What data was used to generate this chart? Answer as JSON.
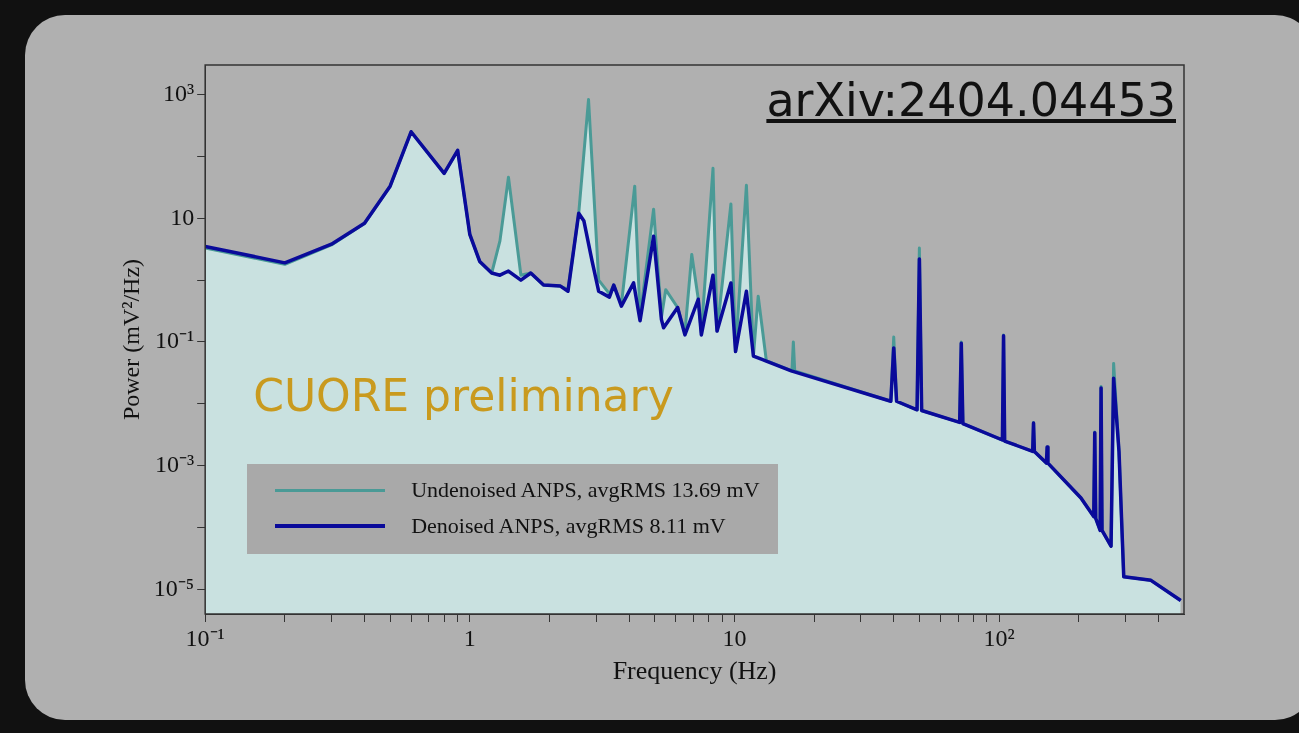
{
  "chart_data": {
    "type": "line",
    "xlabel": "Frequency (Hz)",
    "ylabel": "Power (mV²/Hz)",
    "annotations": [
      "CUORE preliminary",
      "arXiv:2404.04453"
    ],
    "log": "xy",
    "legend": "bottom left",
    "marker": "none",
    "line_style": "solid",
    "xlim": [
      0.1,
      500
    ],
    "ylim": [
      4e-06,
      3000
    ],
    "xticks": [
      {
        "value": 0.1,
        "label": "10⁻¹"
      },
      {
        "value": 0.2,
        "label": null
      },
      {
        "value": 0.3,
        "label": null
      },
      {
        "value": 0.4,
        "label": null
      },
      {
        "value": 0.5,
        "label": null
      },
      {
        "value": 0.6,
        "label": null
      },
      {
        "value": 0.7,
        "label": null
      },
      {
        "value": 0.8,
        "label": null
      },
      {
        "value": 0.9,
        "label": null
      },
      1,
      {
        "value": 2,
        "label": null
      },
      {
        "value": 3,
        "label": null
      },
      {
        "value": 4,
        "label": null
      },
      {
        "value": 5,
        "label": null
      },
      {
        "value": 6,
        "label": null
      },
      {
        "value": 7,
        "label": null
      },
      {
        "value": 8,
        "label": null
      },
      {
        "value": 9,
        "label": null
      },
      10,
      {
        "value": 20,
        "label": null
      },
      {
        "value": 30,
        "label": null
      },
      {
        "value": 40,
        "label": null
      },
      {
        "value": 50,
        "label": null
      },
      {
        "value": 60,
        "label": null
      },
      {
        "value": 70,
        "label": null
      },
      {
        "value": 80,
        "label": null
      },
      {
        "value": 90,
        "label": null
      },
      {
        "value": 100,
        "label": "10²"
      },
      {
        "value": 200,
        "label": null
      },
      {
        "value": 300,
        "label": null
      },
      {
        "value": 400,
        "label": null
      }
    ],
    "yticks": [
      {
        "value": 1e-05,
        "label": "10⁻⁵"
      },
      {
        "value": 0.0001,
        "label": null
      },
      {
        "value": 0.001,
        "label": "10⁻³"
      },
      {
        "value": 0.01,
        "label": null
      },
      {
        "value": 0.1,
        "label": "10⁻¹"
      },
      {
        "value": 1,
        "label": null
      },
      10,
      {
        "value": 100,
        "label": null
      },
      {
        "value": 1000,
        "label": "10³"
      }
    ],
    "series": [
      {
        "name": "Undenoised ANPS, avgRMS 13.69 mV",
        "type": "area",
        "color": "#4a9a96",
        "x": [
          0.1,
          0.2,
          0.3,
          0.4,
          0.5,
          0.6,
          0.8,
          0.9,
          1.0,
          1.09,
          1.21,
          1.3,
          1.4,
          1.56,
          1.7,
          1.9,
          2.2,
          2.35,
          2.58,
          2.81,
          3.07,
          3.37,
          3.5,
          3.74,
          4.2,
          4.4,
          4.95,
          5.3,
          5.5,
          6.1,
          6.5,
          6.9,
          7.3,
          7.5,
          8.3,
          8.6,
          9.7,
          10.1,
          11.1,
          11.8,
          12.3,
          13.2,
          16.5,
          16.7,
          16.9,
          39,
          40,
          41,
          49,
          50,
          51,
          71,
          72,
          73,
          103,
          104,
          105,
          134,
          135,
          136,
          151,
          152,
          153,
          204,
          228,
          230,
          232,
          241,
          243,
          245,
          265,
          271,
          284,
          296,
          375,
          486
        ],
        "values": [
          3.3,
          1.8,
          3.7,
          8.2,
          33,
          250,
          53,
          125,
          5.5,
          2.0,
          1.3,
          4.3,
          46,
          1.2,
          1.3,
          0.83,
          0.8,
          0.7,
          12,
          830,
          1.0,
          0.6,
          0.83,
          0.4,
          33,
          0.25,
          14,
          0.25,
          0.7,
          0.36,
          0.14,
          2.6,
          0.5,
          0.14,
          64,
          0.15,
          17,
          0.07,
          34,
          0.06,
          0.55,
          0.05,
          0.034,
          0.1,
          0.034,
          0.011,
          0.12,
          0.011,
          0.008,
          3.3,
          0.0078,
          0.005,
          0.1,
          0.0048,
          0.0026,
          0.13,
          0.0025,
          0.0017,
          0.005,
          0.0017,
          0.0011,
          0.002,
          0.0011,
          0.0003,
          0.00015,
          0.0035,
          0.00014,
          9e-05,
          0.019,
          9e-05,
          5e-05,
          0.045,
          0.0017,
          1.6e-05,
          1.4e-05,
          6.6e-06
        ]
      },
      {
        "name": "Denoised ANPS, avgRMS 8.11 mV",
        "type": "line",
        "color": "#0a0a9a",
        "x": [
          0.1,
          0.2,
          0.3,
          0.4,
          0.5,
          0.6,
          0.8,
          0.9,
          1.0,
          1.09,
          1.21,
          1.3,
          1.4,
          1.56,
          1.7,
          1.9,
          2.2,
          2.35,
          2.58,
          2.7,
          2.9,
          3.07,
          3.37,
          3.5,
          3.74,
          4.16,
          4.4,
          4.95,
          5.3,
          5.4,
          6.1,
          6.5,
          7.3,
          7.5,
          8.3,
          8.6,
          9.7,
          10.1,
          11.1,
          11.8,
          13.2,
          16.4,
          39,
          40,
          41,
          49,
          50,
          51,
          71,
          72,
          73,
          103,
          104,
          105,
          134,
          135,
          136,
          151,
          152,
          153,
          204,
          228,
          230,
          232,
          241,
          243,
          245,
          265,
          271,
          284,
          296,
          375,
          486
        ],
        "values": [
          3.5,
          1.9,
          3.8,
          8.3,
          33,
          250,
          53,
          125,
          5.5,
          2.0,
          1.3,
          1.2,
          1.4,
          1.0,
          1.3,
          0.83,
          0.8,
          0.66,
          12,
          9,
          2.0,
          0.66,
          0.53,
          0.83,
          0.38,
          0.9,
          0.22,
          5.1,
          0.23,
          0.17,
          0.36,
          0.13,
          0.49,
          0.13,
          1.2,
          0.15,
          0.9,
          0.07,
          0.66,
          0.059,
          0.049,
          0.034,
          0.011,
          0.08,
          0.011,
          0.008,
          2.2,
          0.0078,
          0.005,
          0.095,
          0.0048,
          0.0026,
          0.126,
          0.0025,
          0.0017,
          0.0049,
          0.0017,
          0.0011,
          0.002,
          0.0011,
          0.0003,
          0.00015,
          0.0034,
          0.00014,
          9e-05,
          0.018,
          9e-05,
          5e-05,
          0.026,
          0.0017,
          1.6e-05,
          1.4e-05,
          6.6e-06
        ]
      }
    ]
  }
}
